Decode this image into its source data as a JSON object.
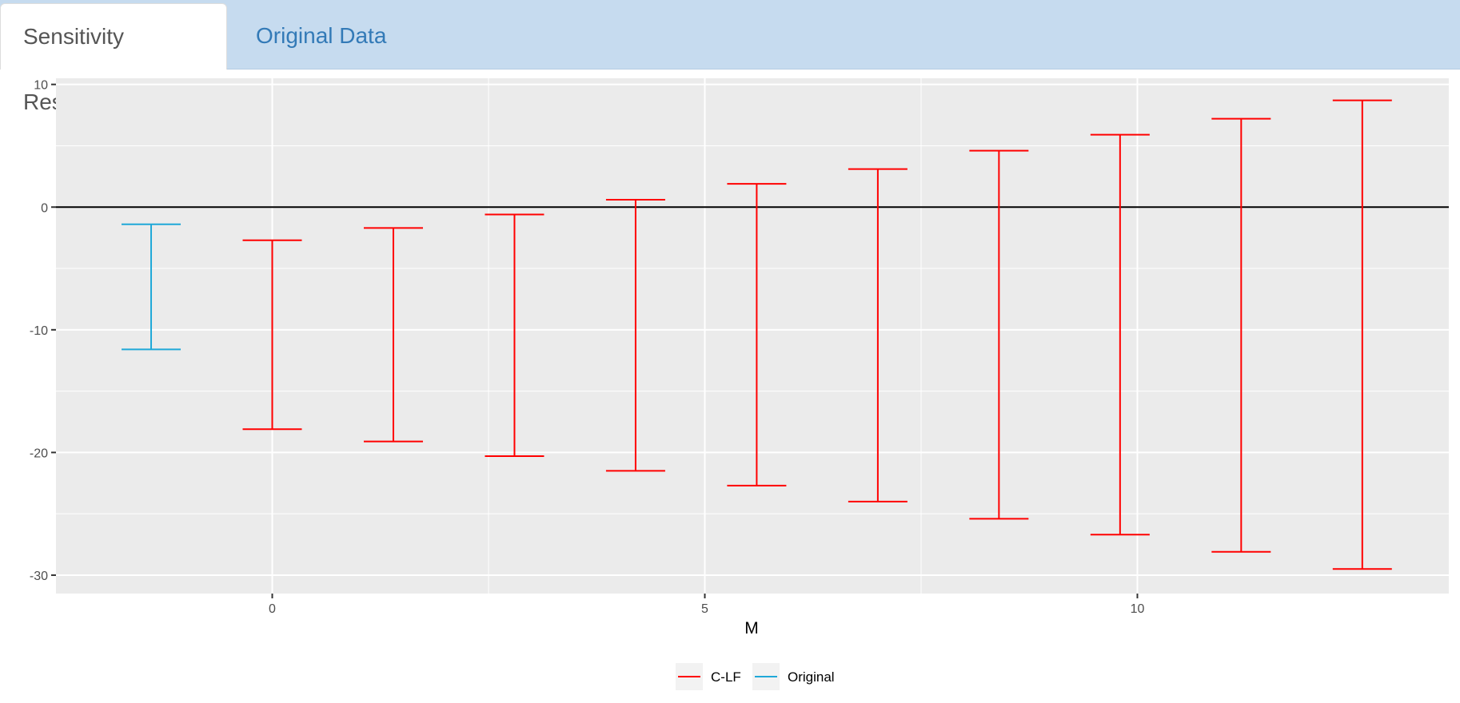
{
  "tabs": [
    {
      "label": "Sensitivity Results",
      "active": true
    },
    {
      "label": "Original Data",
      "active": false
    }
  ],
  "chart_data": {
    "type": "errorbar",
    "xlabel": "M",
    "ylabel": "",
    "xlim": [
      -2.5,
      13.6
    ],
    "ylim": [
      -31.5,
      10.5
    ],
    "xticks": [
      0,
      5,
      10
    ],
    "xtick_labels": [
      "0",
      "5",
      "10"
    ],
    "yticks": [
      10,
      0,
      -10,
      -20,
      -30
    ],
    "ytick_labels": [
      "10",
      "0",
      "-10",
      "-20",
      "-30"
    ],
    "grid": true,
    "reference_line_y": 0,
    "legend_position": "bottom",
    "series": [
      {
        "name": "Original",
        "color": "#1fa8d8",
        "points": [
          {
            "x": -1.4,
            "lower": -11.6,
            "upper": -1.4
          }
        ]
      },
      {
        "name": "C-LF",
        "color": "#ff0000",
        "points": [
          {
            "x": 0.0,
            "lower": -18.1,
            "upper": -2.7
          },
          {
            "x": 1.4,
            "lower": -19.1,
            "upper": -1.7
          },
          {
            "x": 2.8,
            "lower": -20.3,
            "upper": -0.6
          },
          {
            "x": 4.2,
            "lower": -21.5,
            "upper": 0.6
          },
          {
            "x": 5.6,
            "lower": -22.7,
            "upper": 1.9
          },
          {
            "x": 7.0,
            "lower": -24.0,
            "upper": 3.1
          },
          {
            "x": 8.4,
            "lower": -25.4,
            "upper": 4.6
          },
          {
            "x": 9.8,
            "lower": -26.7,
            "upper": 5.9
          },
          {
            "x": 11.2,
            "lower": -28.1,
            "upper": 7.2
          },
          {
            "x": 12.6,
            "lower": -29.5,
            "upper": 8.7
          }
        ]
      }
    ],
    "legend": [
      "C-LF",
      "Original"
    ]
  }
}
